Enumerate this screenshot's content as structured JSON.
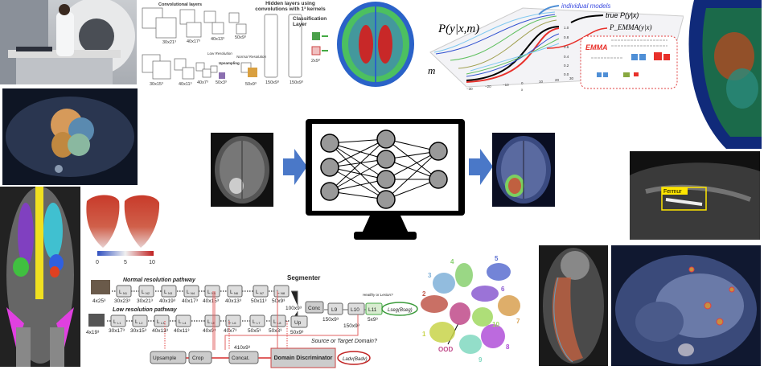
{
  "cnn": {
    "conv_title": "Convolutional layers",
    "hidden_title": "Hidden layers using convolutions with 1³ kernels",
    "class_title": "Classification Layer",
    "top_sizes": [
      "30x21³",
      "40x17³",
      "40x13³",
      "50x9³"
    ],
    "bottom_sizes": [
      "30x15³",
      "40x11³",
      "40x7³",
      "50x3³",
      "50x9³"
    ],
    "low_res": "Low Resolution",
    "normal_res": "Normal Resolution",
    "upsampling": "Upsampling",
    "hidden_sizes": [
      "150x9³",
      "150x9³"
    ],
    "class_size": "2x9³"
  },
  "emma": {
    "p_ym": "P(y|x,m)",
    "individual": "individual models",
    "true": "true P(y|x)",
    "p_emma": "P_EMMA(y|x)",
    "emma_label": "EMMA",
    "m_axis": "m",
    "x_axis": "x",
    "x_ticks": [
      "−30",
      "−20",
      "−10",
      "0",
      "10",
      "20",
      "30"
    ],
    "z_ticks": [
      "1.0",
      "0.8",
      "0.6",
      "0.4",
      "0.2",
      "0.0"
    ],
    "colors": {
      "individual": "#4f8fd6",
      "true": "#000000",
      "emma": "#e8302a"
    }
  },
  "ultrasound": {
    "label": "Fermur"
  },
  "heart": {
    "ticks": [
      "0",
      "5",
      "10"
    ]
  },
  "segmenter": {
    "normal_path": "Normal resolution pathway",
    "low_path": "Low resolution pathway",
    "title": "Segmenter",
    "input_n": "4x25³",
    "input_l": "4x19³",
    "n_layers": [
      {
        "l": "L",
        "s": "N1",
        "d": "30x23³"
      },
      {
        "l": "L",
        "s": "N2",
        "d": "30x21³"
      },
      {
        "l": "L",
        "s": "N3",
        "d": "40x19³"
      },
      {
        "l": "L",
        "s": "N4",
        "d": "40x17³"
      },
      {
        "l": "L",
        "s": "N5",
        "d": "40x15³"
      },
      {
        "l": "L",
        "s": "N6",
        "d": "40x13³"
      },
      {
        "l": "L",
        "s": "N7",
        "d": "50x11³"
      },
      {
        "l": "L",
        "s": "N8",
        "d": "50x9³"
      }
    ],
    "l_layers": [
      {
        "l": "L",
        "s": "L1",
        "d": "30x17³"
      },
      {
        "l": "L",
        "s": "L2",
        "d": "30x15³"
      },
      {
        "l": "L",
        "s": "L3",
        "d": "40x13³"
      },
      {
        "l": "L",
        "s": "L4",
        "d": "40x11³"
      },
      {
        "l": "L",
        "s": "L5",
        "d": "40x9³"
      },
      {
        "l": "L",
        "s": "L6",
        "d": "40x7³"
      },
      {
        "l": "L",
        "s": "L7",
        "d": "50x5³"
      },
      {
        "l": "L",
        "s": "L8",
        "d": "50x3³"
      }
    ],
    "conc": "Conc",
    "conc_size": "100x9³",
    "up": "Up",
    "up_size": "50x9³",
    "l9": "L9",
    "l9_size": "150x9³",
    "l10": "L10",
    "l10_size": "150x9³",
    "l11": "L11",
    "l11_size": "5x9³",
    "healthy": "Healthy or Lesion?",
    "loss_seg": "Lseg(Bseg)",
    "source": "Source or Target Domain?",
    "upsample": "Upsample",
    "crop": "Crop",
    "concat": "Concat.",
    "concat_size": "410x9³",
    "disc": "Domain Discriminator",
    "loss_adv": "Ladv(Badv)"
  },
  "tsne": {
    "clusters": [
      {
        "label": "1",
        "color": "#c8d44a"
      },
      {
        "label": "2",
        "color": "#c0574a"
      },
      {
        "label": "3",
        "color": "#7fb0d8"
      },
      {
        "label": "4",
        "color": "#88d070"
      },
      {
        "label": "5",
        "color": "#5a6ed0"
      },
      {
        "label": "6",
        "color": "#8a5ad0"
      },
      {
        "label": "7",
        "color": "#d8a050"
      },
      {
        "label": "8",
        "color": "#b050d8"
      },
      {
        "label": "9",
        "color": "#80d8c0"
      },
      {
        "label": "10",
        "color": "#a0d860"
      }
    ],
    "ood": "OOD",
    "ood_color": "#c04a8a"
  }
}
